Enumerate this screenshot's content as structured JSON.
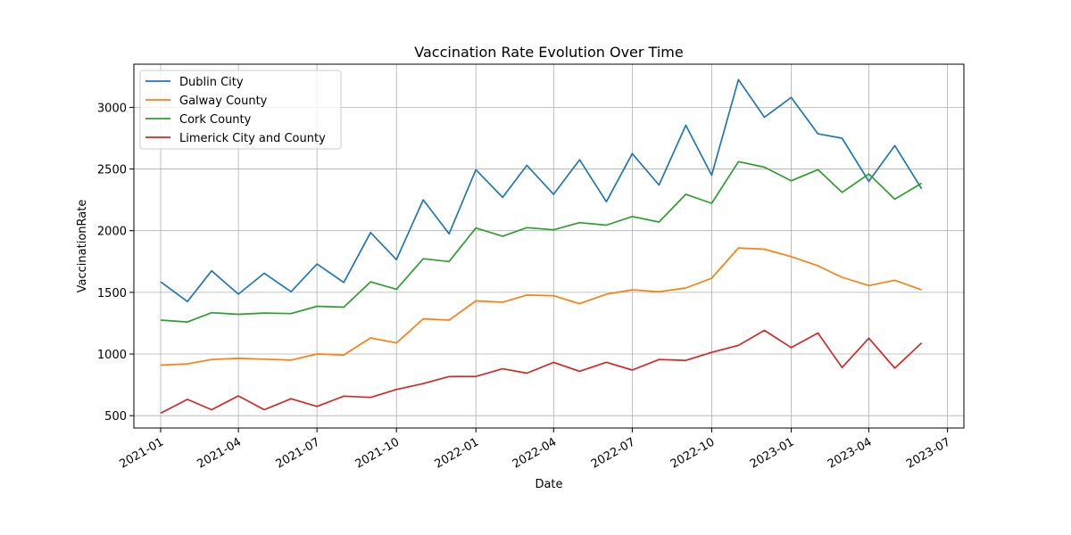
{
  "chart_data": {
    "type": "line",
    "title": "Vaccination Rate Evolution Over Time",
    "xlabel": "Date",
    "ylabel": "VaccinationRate",
    "x": [
      "2021-01",
      "2021-02",
      "2021-03",
      "2021-04",
      "2021-05",
      "2021-06",
      "2021-07",
      "2021-08",
      "2021-09",
      "2021-10",
      "2021-11",
      "2021-12",
      "2022-01",
      "2022-02",
      "2022-03",
      "2022-04",
      "2022-05",
      "2022-06",
      "2022-07",
      "2022-08",
      "2022-09",
      "2022-10",
      "2022-11",
      "2022-12",
      "2023-01",
      "2023-02",
      "2023-03",
      "2023-04",
      "2023-05",
      "2023-06"
    ],
    "x_ticks": [
      "2021-01",
      "2021-04",
      "2021-07",
      "2021-10",
      "2022-01",
      "2022-04",
      "2022-07",
      "2022-10",
      "2023-01",
      "2023-04",
      "2023-07"
    ],
    "y_ticks": [
      500,
      1000,
      1500,
      2000,
      2500,
      3000
    ],
    "ylim": [
      400,
      3350
    ],
    "xlim": [
      "2020-12-01",
      "2023-07-20"
    ],
    "grid": true,
    "legend_position": "upper-left",
    "series": [
      {
        "name": "Dublin City",
        "color": "#1f77b4",
        "values": [
          1585,
          1425,
          1675,
          1485,
          1655,
          1505,
          1730,
          1580,
          1985,
          1765,
          2250,
          1975,
          2495,
          2270,
          2530,
          2295,
          2575,
          2235,
          2625,
          2370,
          2855,
          2450,
          3225,
          2920,
          3080,
          2785,
          2750,
          2400,
          2690,
          2340
        ]
      },
      {
        "name": "Galway County",
        "color": "#ff7f0e",
        "values": [
          910,
          920,
          955,
          965,
          958,
          950,
          1000,
          992,
          1130,
          1090,
          1285,
          1275,
          1430,
          1420,
          1478,
          1472,
          1408,
          1485,
          1520,
          1505,
          1535,
          1615,
          1860,
          1850,
          1790,
          1715,
          1622,
          1555,
          1598,
          1520
        ]
      },
      {
        "name": "Cork County",
        "color": "#2ca02c",
        "values": [
          1275,
          1260,
          1335,
          1322,
          1332,
          1328,
          1387,
          1380,
          1585,
          1525,
          1772,
          1750,
          2022,
          1955,
          2025,
          2007,
          2065,
          2045,
          2115,
          2070,
          2295,
          2222,
          2560,
          2515,
          2405,
          2495,
          2310,
          2460,
          2255,
          2385
        ]
      },
      {
        "name": "Limerick City and County",
        "color": "#d62728",
        "values": [
          520,
          632,
          548,
          660,
          548,
          637,
          575,
          658,
          648,
          712,
          760,
          817,
          818,
          880,
          845,
          932,
          860,
          933,
          870,
          955,
          948,
          1013,
          1070,
          1192,
          1052,
          1170,
          890,
          1128,
          885,
          1090
        ]
      }
    ]
  }
}
